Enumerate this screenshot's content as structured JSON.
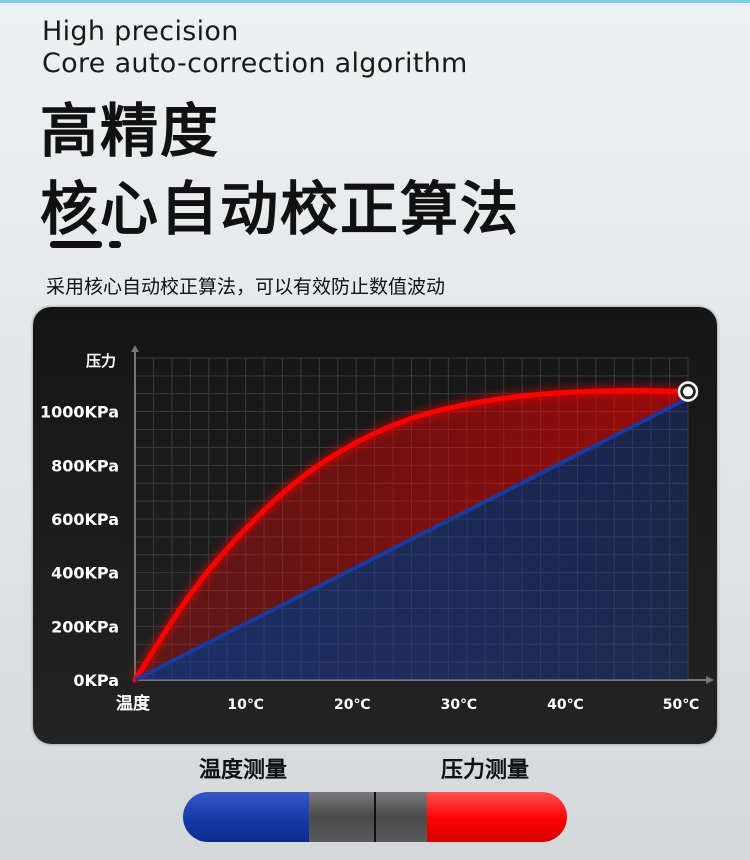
{
  "header": {
    "en_line1": "High precision",
    "en_line2": "Core auto-correction algorithm",
    "cn_line1": "高精度",
    "cn_line2": "核心自动校正算法",
    "subtitle": "采用核心自动校正算法，可以有效防止数值波动"
  },
  "legend": {
    "temperature_label": "温度测量",
    "pressure_label": "压力测量",
    "colors": {
      "temperature": "#1338a8",
      "pressure": "#ff0000",
      "middle": "#555555"
    }
  },
  "chart_data": {
    "type": "line",
    "title": "",
    "xlabel": "温度",
    "ylabel": "压力",
    "x_ticks": [
      "10℃",
      "20℃",
      "30℃",
      "40℃",
      "50℃"
    ],
    "x_tick_values": [
      10,
      20,
      30,
      40,
      50
    ],
    "y_ticks": [
      "0KPa",
      "200KPa",
      "400KPa",
      "600KPa",
      "800KPa",
      "1000KPa"
    ],
    "y_tick_values": [
      0,
      200,
      400,
      600,
      800,
      1000
    ],
    "xlim": [
      0,
      50
    ],
    "ylim": [
      0,
      1200
    ],
    "grid": true,
    "series": [
      {
        "color": "#ff0000",
        "x": [
          0,
          5,
          10,
          15,
          20,
          25,
          30,
          35,
          40,
          45,
          50
        ],
        "y": [
          0,
          330,
          570,
          760,
          890,
          980,
          1030,
          1060,
          1075,
          1080,
          1075
        ]
      },
      {
        "color": "#1a3aa0",
        "x": [
          0,
          50
        ],
        "y": [
          0,
          1050
        ]
      }
    ],
    "end_marker": {
      "x": 50,
      "y": 1075
    }
  }
}
